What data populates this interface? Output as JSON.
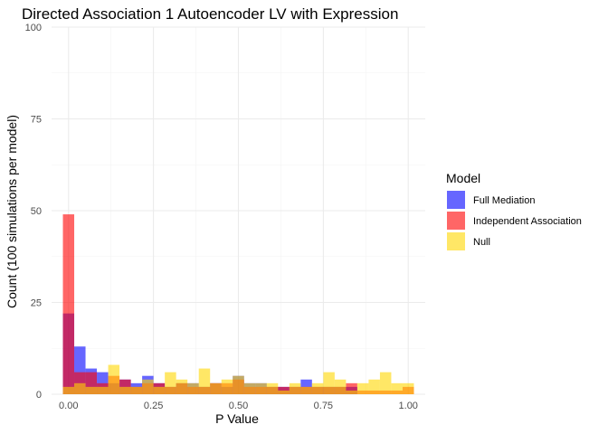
{
  "chart_data": {
    "type": "bar",
    "title": "Directed Association 1 Autoencoder LV with Expression",
    "xlabel": "P Value",
    "ylabel": "Count (100 simulations per model)",
    "xlim": [
      -0.05,
      1.05
    ],
    "ylim": [
      0,
      100
    ],
    "x_ticks": [
      0,
      0.25,
      0.5,
      0.75,
      1
    ],
    "x_tick_labels": [
      "0.00",
      "0.25",
      "0.50",
      "0.75",
      "1.00"
    ],
    "y_ticks": [
      0,
      25,
      50,
      75,
      100
    ],
    "y_tick_labels": [
      "0",
      "25",
      "50",
      "75",
      "100"
    ],
    "grid": true,
    "legend_position": "right",
    "legend_title": "Model",
    "bin_width": 0.0333,
    "bin_centers": [
      0.0,
      0.0333,
      0.0667,
      0.1,
      0.1333,
      0.1667,
      0.2,
      0.2333,
      0.2667,
      0.3,
      0.3333,
      0.3667,
      0.4,
      0.4333,
      0.4667,
      0.5,
      0.5333,
      0.5667,
      0.6,
      0.6333,
      0.6667,
      0.7,
      0.7333,
      0.7667,
      0.8,
      0.8333,
      0.8667,
      0.9,
      0.9333,
      0.9667,
      1.0
    ],
    "series": [
      {
        "name": "Full Mediation",
        "color": "#0000FF",
        "opacity": 0.6,
        "values": [
          22,
          13,
          7,
          6,
          3,
          4,
          3,
          5,
          3,
          2,
          3,
          3,
          2,
          3,
          2,
          5,
          3,
          3,
          2,
          2,
          2,
          4,
          2,
          2,
          2,
          2,
          0,
          0,
          0,
          0,
          0
        ]
      },
      {
        "name": "Independent Association",
        "color": "#FF0000",
        "opacity": 0.6,
        "values": [
          49,
          6,
          6,
          3,
          5,
          4,
          2,
          3,
          3,
          2,
          3,
          2,
          2,
          3,
          3,
          4,
          2,
          2,
          2,
          2,
          2,
          2,
          2,
          2,
          2,
          3,
          1,
          1,
          1,
          1,
          2
        ]
      },
      {
        "name": "Null",
        "color": "#FFD700",
        "opacity": 0.6,
        "values": [
          2,
          3,
          2,
          2,
          8,
          2,
          2,
          4,
          2,
          6,
          4,
          3,
          7,
          3,
          4,
          5,
          3,
          3,
          3,
          1,
          3,
          2,
          3,
          6,
          4,
          1,
          3,
          4,
          6,
          3,
          3
        ]
      }
    ]
  }
}
